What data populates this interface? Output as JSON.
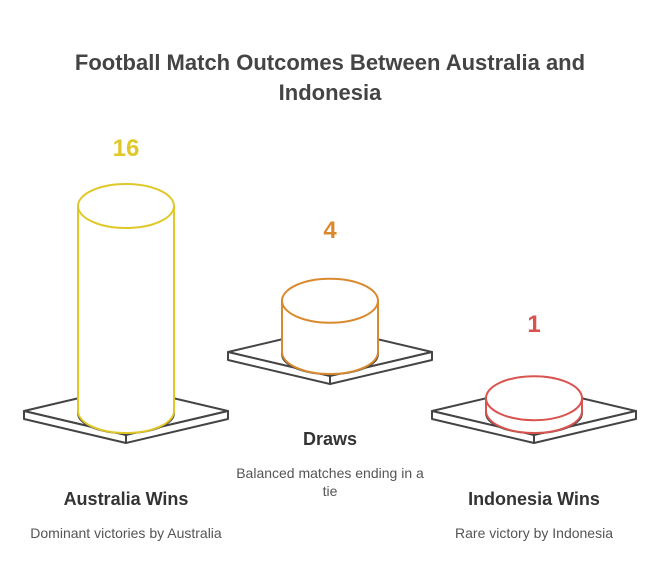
{
  "title": "Football Match Outcomes Between Australia and Indonesia",
  "chart_data": {
    "type": "bar",
    "title": "Football Match Outcomes Between Australia and Indonesia",
    "categories": [
      "Australia Wins",
      "Draws",
      "Indonesia Wins"
    ],
    "values": [
      16,
      4,
      1
    ],
    "descriptions": [
      "Dominant victories by Australia",
      "Balanced matches ending in a tie",
      "Rare victory by Indonesia"
    ],
    "colors": [
      "#e1c829",
      "#d98a2e",
      "#d9534f"
    ]
  }
}
